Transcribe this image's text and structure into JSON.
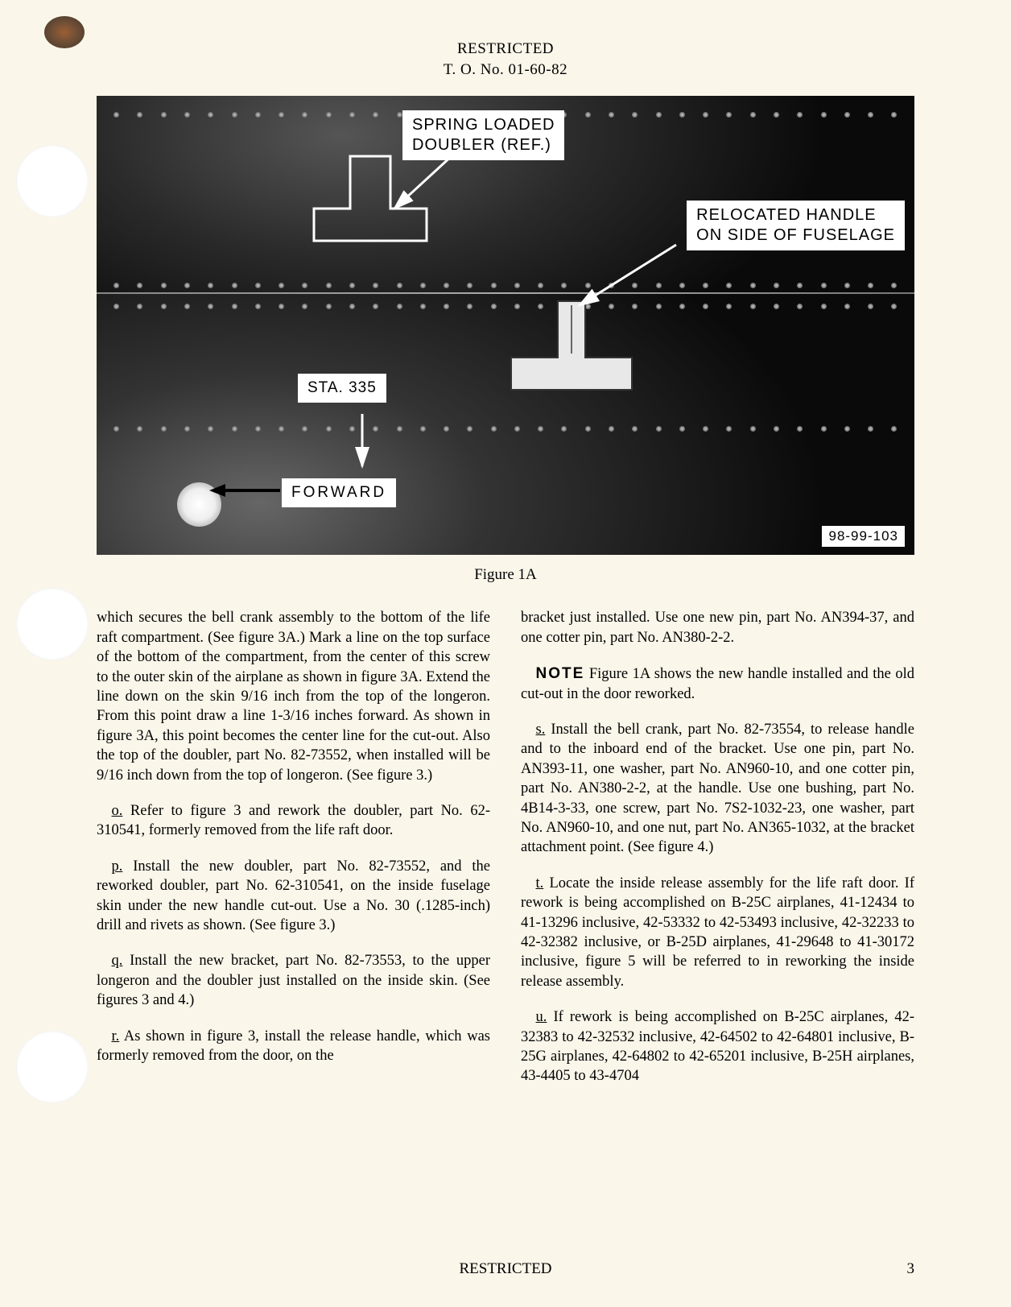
{
  "header": {
    "classification": "RESTRICTED",
    "doc_number": "T. O. No. 01-60-82"
  },
  "figure": {
    "caption": "Figure 1A",
    "photo_id": "98-99-103",
    "callouts": {
      "spring_doubler": "SPRING LOADED\nDOUBLER (REF.)",
      "relocated_handle": "RELOCATED HANDLE\nON SIDE OF FUSELAGE",
      "station": "STA. 335",
      "forward": "FORWARD"
    },
    "colors": {
      "page_bg": "#faf6ea",
      "photo_dark": "#0a0a0a",
      "photo_mid": "#333333",
      "callout_bg": "#ffffff",
      "text": "#000000"
    }
  },
  "paragraphs": {
    "cont_n": "which secures the bell crank assembly to the bottom of the life raft compartment. (See figure 3A.) Mark a line on the top surface of the bottom of the compartment, from the center of this screw to the outer skin of the airplane as shown in figure 3A. Extend the line down on the skin 9/16 inch from the top of the longeron. From this point draw a line 1-3/16 inches forward. As shown in figure 3A, this point becomes the center line for the cut-out. Also the top of the doubler, part No. 82-73552, when installed will be 9/16 inch down from the top of longeron. (See figure 3.)",
    "o": "Refer to figure 3 and rework the doubler, part No. 62-310541, formerly removed from the life raft door.",
    "p": "Install the new doubler, part No. 82-73552, and the reworked doubler, part No. 62-310541, on the inside fuselage skin under the new handle cut-out. Use a No. 30 (.1285-inch) drill and rivets as shown. (See figure 3.)",
    "q": "Install the new bracket, part No. 82-73553, to the upper longeron and the doubler just installed on the inside skin. (See figures 3 and 4.)",
    "r": "As shown in figure 3, install the release handle, which was formerly removed from the door, on the",
    "r_cont": "bracket just installed. Use one new pin, part No. AN394-37, and one cotter pin, part No. AN380-2-2.",
    "note": "Figure 1A shows the new handle installed and the old cut-out in the door reworked.",
    "s": "Install the bell crank, part No. 82-73554, to release handle and to the inboard end of the bracket. Use one pin, part No. AN393-11, one washer, part No. AN960-10, and one cotter pin, part No. AN380-2-2, at the handle. Use one bushing, part No. 4B14-3-33, one screw, part No. 7S2-1032-23, one washer, part No. AN960-10, and one nut, part No. AN365-1032, at the bracket attachment point. (See figure 4.)",
    "t": "Locate the inside release assembly for the life raft door. If rework is being accomplished on B-25C airplanes, 41-12434 to 41-13296 inclusive, 42-53332 to 42-53493 inclusive, 42-32233 to 42-32382 inclusive, or B-25D airplanes, 41-29648 to 41-30172 inclusive, figure 5 will be referred to in reworking the inside release assembly.",
    "u": "If rework is being accomplished on B-25C airplanes, 42-32383 to 42-32532 inclusive, 42-64502 to 42-64801 inclusive, B-25G airplanes, 42-64802 to 42-65201 inclusive, B-25H airplanes, 43-4405 to 43-4704"
  },
  "step_labels": {
    "o": "o.",
    "p": "p.",
    "q": "q.",
    "r": "r.",
    "s": "s.",
    "t": "t.",
    "u": "u.",
    "note": "NOTE"
  },
  "footer": {
    "classification": "RESTRICTED",
    "page_number": "3"
  }
}
